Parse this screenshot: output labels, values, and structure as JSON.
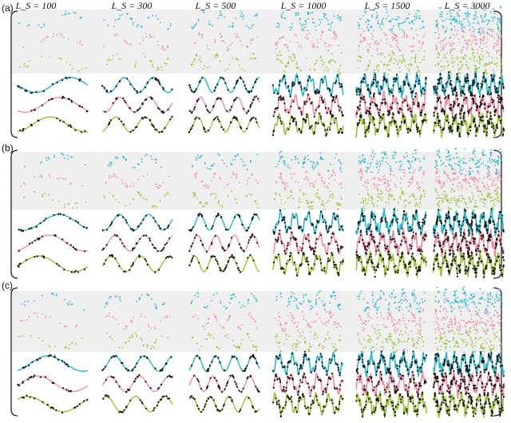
{
  "column_headers": [
    "L_S = 100",
    "L_S = 300",
    "L_S = 500",
    "L_S = 1000",
    "L_S = 1500",
    "L_S = 3000"
  ],
  "panel_labels": [
    "(a)",
    "(b)",
    "(c)"
  ],
  "colors": {
    "cyan": "#29b6c9",
    "pink": "#f08ea0",
    "green": "#9cc23a",
    "points": "#111111",
    "band": "#efefef",
    "bracket": "#222222"
  },
  "series_row_order": [
    "cyan",
    "pink",
    "green"
  ]
}
